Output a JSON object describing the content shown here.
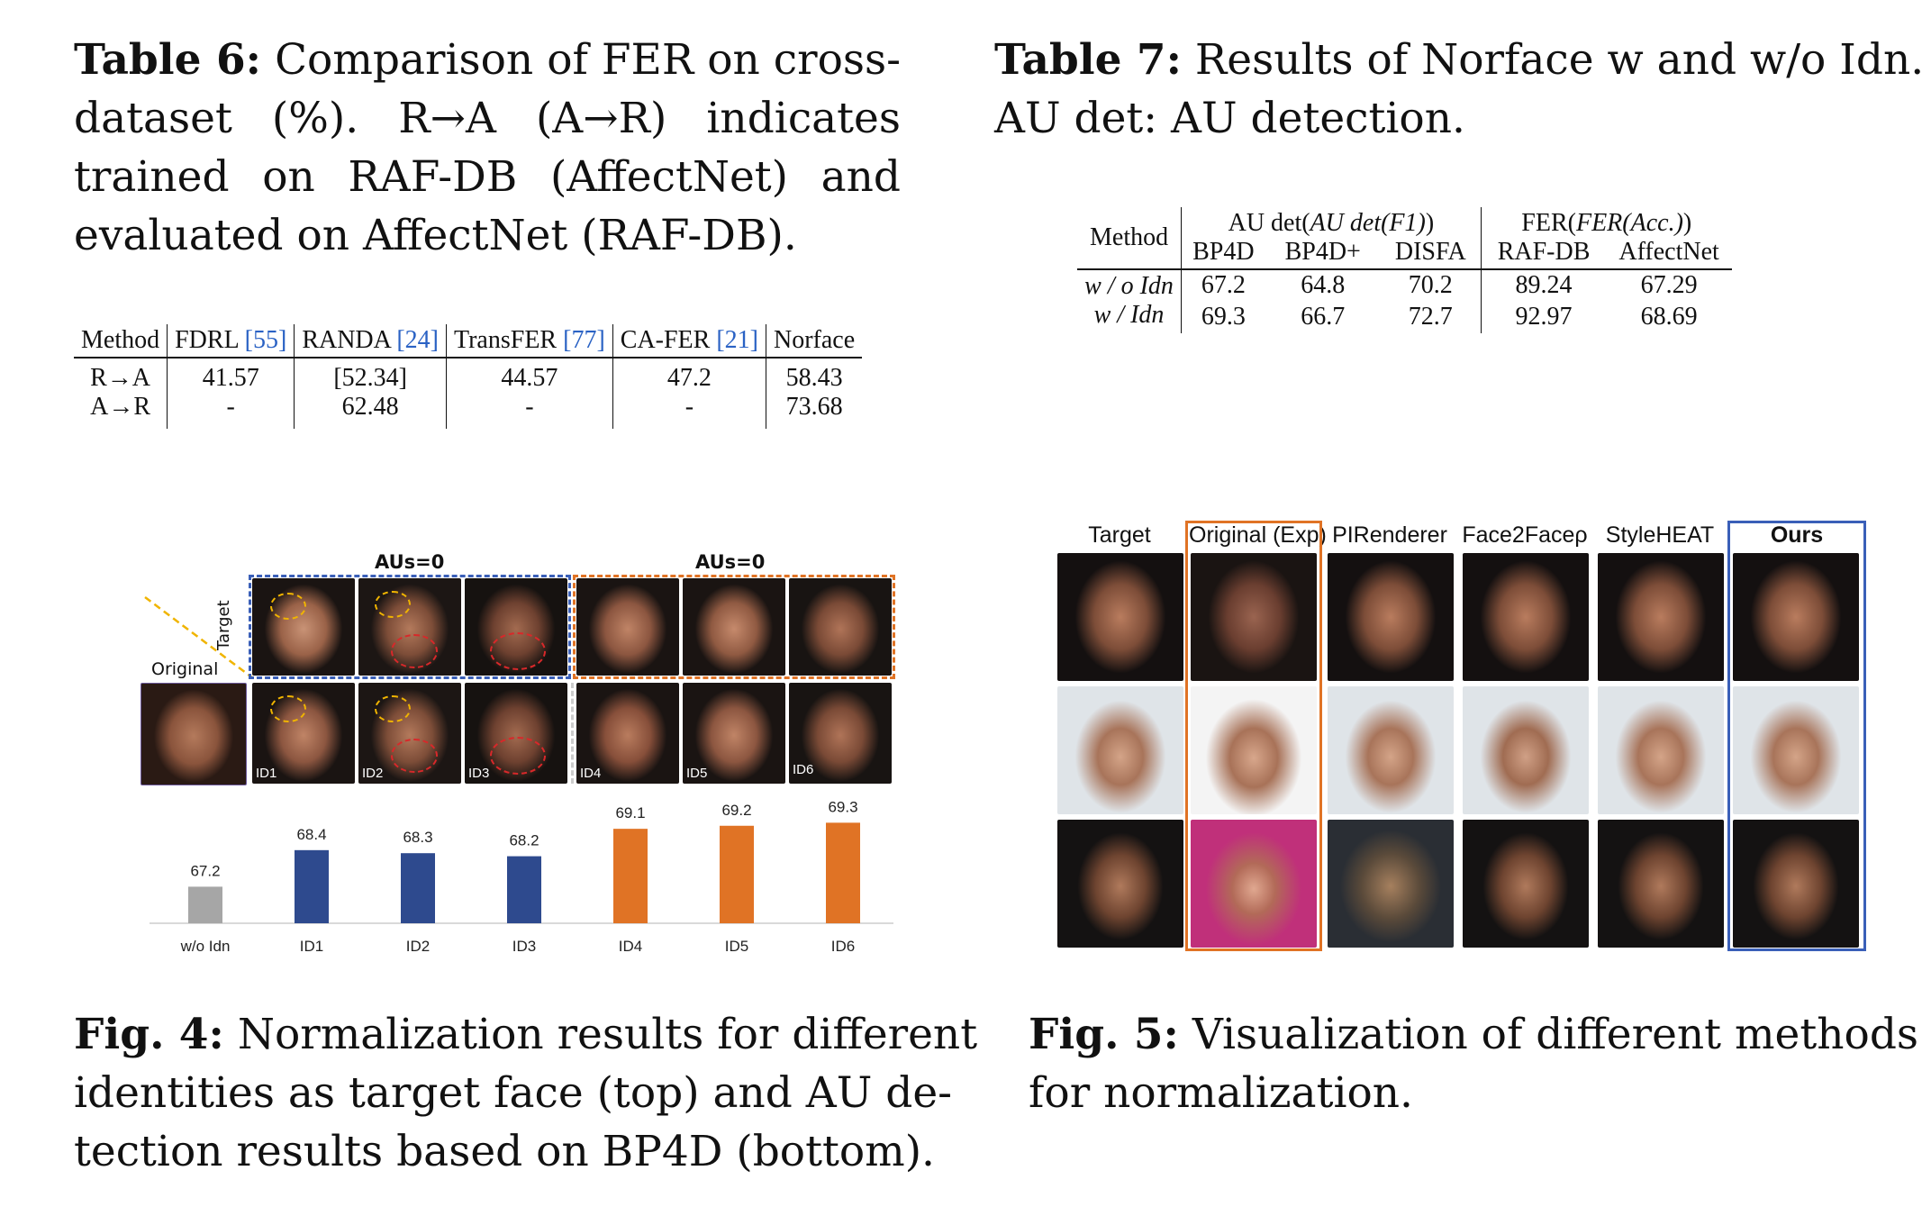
{
  "table6": {
    "caption_label": "Table 6:",
    "caption_lines": [
      "Comparison of FER on cross-",
      "dataset (%). R→A (A→R) indicates",
      "trained on RAF-DB (AffectNet) and",
      "evaluated on AffectNet (RAF-DB)."
    ],
    "headers": [
      {
        "name": "Method",
        "ref": ""
      },
      {
        "name": "FDRL",
        "ref": "55"
      },
      {
        "name": "RANDA",
        "ref": "24"
      },
      {
        "name": "TransFER",
        "ref": "77"
      },
      {
        "name": "CA-FER",
        "ref": "21"
      },
      {
        "name": "Norface",
        "ref": ""
      }
    ],
    "rows": [
      {
        "method": "R→A",
        "values": [
          "41.57",
          "[52.34]",
          "44.57",
          "47.2",
          "58.43"
        ]
      },
      {
        "method": "A→R",
        "values": [
          "-",
          "62.48",
          "-",
          "-",
          "73.68"
        ]
      }
    ]
  },
  "table7": {
    "caption_label": "Table 7:",
    "caption_line1": "Results of Norface w and w/o Idn.",
    "caption_line2": "AU det: AU detection.",
    "method_header": "Method",
    "group1": "AU det(F1)",
    "group2": "FER(Acc.)",
    "subheaders": [
      "BP4D",
      "BP4D+",
      "DISFA",
      "RAF-DB",
      "AffectNet"
    ],
    "rows": [
      {
        "method": "w / o Idn",
        "values": [
          "67.2",
          "64.8",
          "70.2",
          "89.24",
          "67.29"
        ]
      },
      {
        "method": "w / Idn",
        "values": [
          "69.3",
          "66.7",
          "72.7",
          "92.97",
          "68.69"
        ]
      }
    ]
  },
  "fig4": {
    "caption_label": "Fig. 4:",
    "caption_lines": [
      "Normalization results for different",
      "identities as target face (top) and AU de-",
      "tection results based on BP4D (bottom)."
    ],
    "aus_label_left": "AUs=0",
    "aus_label_right": "AUs=0",
    "target_label": "Target",
    "original_label": "Original",
    "id_labels": [
      "ID1",
      "ID2",
      "ID3",
      "ID4",
      "ID5",
      "ID6"
    ],
    "colors": {
      "gray": "#a6a6a6",
      "blue": "#2e4a8e",
      "orange": "#e07325"
    }
  },
  "chart_data": {
    "type": "bar",
    "categories": [
      "w/o Idn",
      "ID1",
      "ID2",
      "ID3",
      "ID4",
      "ID5",
      "ID6"
    ],
    "values": [
      67.2,
      68.4,
      68.3,
      68.2,
      69.1,
      69.2,
      69.3
    ],
    "value_labels": [
      "67.2",
      "68.4",
      "68.3",
      "68.2",
      "69.1",
      "69.2",
      "69.3"
    ],
    "bar_colors": [
      "#a6a6a6",
      "#2e4a8e",
      "#2e4a8e",
      "#2e4a8e",
      "#e07325",
      "#e07325",
      "#e07325"
    ],
    "ylim": [
      66.0,
      69.4
    ],
    "grid": false
  },
  "fig5": {
    "caption_label": "Fig. 5:",
    "caption_lines": [
      "Visualization of different methods",
      "for normalization."
    ],
    "columns": [
      "Target",
      "Original (Exp)",
      "PIRenderer",
      "Face2Faceρ",
      "StyleHEAT",
      "Ours"
    ],
    "colors": {
      "original_box": "#e07325",
      "ours_box": "#3a5fb8"
    }
  }
}
